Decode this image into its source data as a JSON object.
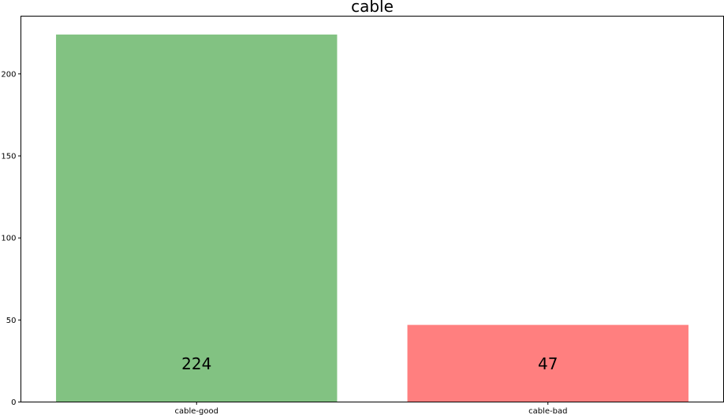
{
  "chart_data": {
    "type": "bar",
    "title": "cable",
    "xlabel": "",
    "ylabel": "",
    "categories": [
      "cable-good",
      "cable-bad"
    ],
    "values": [
      224,
      47
    ],
    "bar_labels": [
      "224",
      "47"
    ],
    "colors": [
      "#82c282",
      "#ff7f7f"
    ],
    "ylim": [
      0,
      235.2
    ],
    "yticks": [
      0,
      50,
      100,
      150,
      200
    ],
    "ytick_labels": [
      "0",
      "50",
      "100",
      "150",
      "200"
    ],
    "grid": false,
    "legend": "none"
  }
}
